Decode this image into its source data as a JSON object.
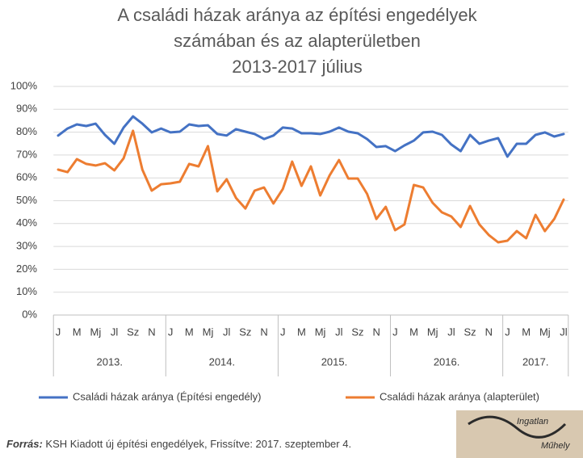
{
  "chart_data": {
    "type": "line",
    "title": [
      "A családi házak aránya az építési engedélyek",
      "számában és az alapterületben",
      "2013-2017 július"
    ],
    "categories": [
      "J",
      null,
      "M",
      null,
      "Mj",
      null,
      "Jl",
      null,
      "Sz",
      null,
      "N",
      null,
      "J",
      null,
      "M",
      null,
      "Mj",
      null,
      "Jl",
      null,
      "Sz",
      null,
      "N",
      null,
      "J",
      null,
      "M",
      null,
      "Mj",
      null,
      "Jl",
      null,
      "Sz",
      null,
      "N",
      null,
      "J",
      null,
      "M",
      null,
      "Mj",
      null,
      "Jl",
      null,
      "Sz",
      null,
      "N",
      null,
      "J",
      null,
      "M",
      null,
      "Mj",
      null,
      "Jl"
    ],
    "groups": [
      "2013.",
      "2014.",
      "2015.",
      "2016.",
      "2017."
    ],
    "series": [
      {
        "name": "Családi házak aránya (Építési engedély)",
        "color": "#4472c4",
        "values": [
          78.5,
          81.6,
          83.4,
          82.7,
          83.7,
          78.8,
          74.9,
          82,
          86.9,
          83.7,
          79.9,
          81.6,
          79.9,
          80.2,
          83.4,
          82.7,
          83,
          79.2,
          78.5,
          81.3,
          80.2,
          79.2,
          77,
          78.5,
          82,
          81.6,
          79.5,
          79.5,
          79.2,
          80.2,
          82,
          80.2,
          79.5,
          77,
          73.5,
          73.9,
          71.7,
          74.2,
          76.3,
          79.9,
          80.2,
          78.8,
          74.6,
          71.7,
          78.8,
          74.9,
          76.3,
          77.4,
          69.3,
          74.9,
          74.9,
          78.8,
          79.9,
          78.1,
          79.2
        ]
      },
      {
        "name": "Családi házak aránya (alapterület)",
        "color": "#ed7d31",
        "values": [
          63.6,
          62.5,
          68.2,
          66.1,
          65.4,
          66.4,
          63.3,
          68.6,
          80.6,
          63.6,
          54.4,
          57.2,
          57.6,
          58.3,
          66.1,
          65,
          73.9,
          54.1,
          59.4,
          51.2,
          46.6,
          54.4,
          55.8,
          48.8,
          55.1,
          67.1,
          56.5,
          65,
          52.3,
          61.1,
          67.8,
          59.7,
          59.7,
          53,
          42,
          47.3,
          37.1,
          39.6,
          56.9,
          55.8,
          49.1,
          44.9,
          43.1,
          38.5,
          47.7,
          39.6,
          35,
          31.8,
          32.5,
          36.7,
          33.6,
          43.8,
          36.7,
          42,
          50.5
        ]
      }
    ],
    "ylim": [
      0,
      100
    ],
    "yticks": [
      {
        "value": 0,
        "label": "0%"
      },
      {
        "value": 10,
        "label": "10%"
      },
      {
        "value": 20,
        "label": "20%"
      },
      {
        "value": 30,
        "label": "30%"
      },
      {
        "value": 40,
        "label": "40%"
      },
      {
        "value": 50,
        "label": "50%"
      },
      {
        "value": 60,
        "label": "60%"
      },
      {
        "value": 70,
        "label": "70%"
      },
      {
        "value": 80,
        "label": "80%"
      },
      {
        "value": 90,
        "label": "90%"
      },
      {
        "value": 100,
        "label": "100%"
      }
    ],
    "grid": true,
    "legend": "bottom",
    "source": {
      "label": "Forrás:",
      "text": "KSH Kiadott új építési engedélyek, Frissítve: 2017. szeptember 4."
    },
    "logo": [
      "Ingatlan",
      "Műhely"
    ]
  }
}
